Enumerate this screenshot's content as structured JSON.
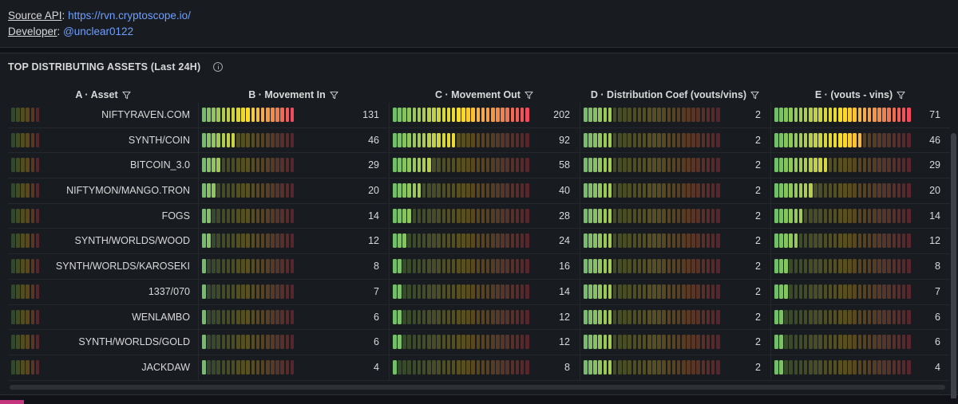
{
  "info": {
    "source_label": "Source API",
    "source_link": "https://rvn.cryptoscope.io/",
    "developer_label": "Developer",
    "developer_link": "@unclear0122"
  },
  "panel": {
    "title": "TOP DISTRIBUTING ASSETS (Last 24H)"
  },
  "columns": [
    {
      "label": "A · Asset",
      "max": 0
    },
    {
      "label": "B · Movement In",
      "max": 131
    },
    {
      "label": "C · Movement Out",
      "max": 202
    },
    {
      "label": "D · Distribution Coef (vouts/vins)",
      "max": 10
    },
    {
      "label": "E · (vouts - vins)",
      "max": 71
    }
  ],
  "rows": [
    {
      "asset": "NIFTYRAVEN.COM",
      "movement_in": "131",
      "movement_out": "202",
      "distribution_coef": "2",
      "vouts_minus_vins": "71"
    },
    {
      "asset": "SYNTH/COIN",
      "movement_in": "46",
      "movement_out": "92",
      "distribution_coef": "2",
      "vouts_minus_vins": "46"
    },
    {
      "asset": "BITCOIN_3.0",
      "movement_in": "29",
      "movement_out": "58",
      "distribution_coef": "2",
      "vouts_minus_vins": "29"
    },
    {
      "asset": "NIFTYMON/MANGO.TRON",
      "movement_in": "20",
      "movement_out": "40",
      "distribution_coef": "2",
      "vouts_minus_vins": "20"
    },
    {
      "asset": "FOGS",
      "movement_in": "14",
      "movement_out": "28",
      "distribution_coef": "2",
      "vouts_minus_vins": "14"
    },
    {
      "asset": "SYNTH/WORLDS/WOOD",
      "movement_in": "12",
      "movement_out": "24",
      "distribution_coef": "2",
      "vouts_minus_vins": "12"
    },
    {
      "asset": "SYNTH/WORLDS/KAROSEKI",
      "movement_in": "8",
      "movement_out": "16",
      "distribution_coef": "2",
      "vouts_minus_vins": "8"
    },
    {
      "asset": "1337/070",
      "movement_in": "7",
      "movement_out": "14",
      "distribution_coef": "2",
      "vouts_minus_vins": "7"
    },
    {
      "asset": "WENLAMBO",
      "movement_in": "6",
      "movement_out": "12",
      "distribution_coef": "2",
      "vouts_minus_vins": "6"
    },
    {
      "asset": "SYNTH/WORLDS/GOLD",
      "movement_in": "6",
      "movement_out": "12",
      "distribution_coef": "2",
      "vouts_minus_vins": "6"
    },
    {
      "asset": "JACKDAW",
      "movement_in": "4",
      "movement_out": "8",
      "distribution_coef": "2",
      "vouts_minus_vins": "4"
    }
  ],
  "icons": {
    "filter": "filter-icon",
    "info": "info-icon"
  },
  "colors": {
    "gauge_low": "#73bf69",
    "gauge_mid": "#fade2a",
    "gauge_high": "#f2495c",
    "link": "#6e9fff"
  }
}
